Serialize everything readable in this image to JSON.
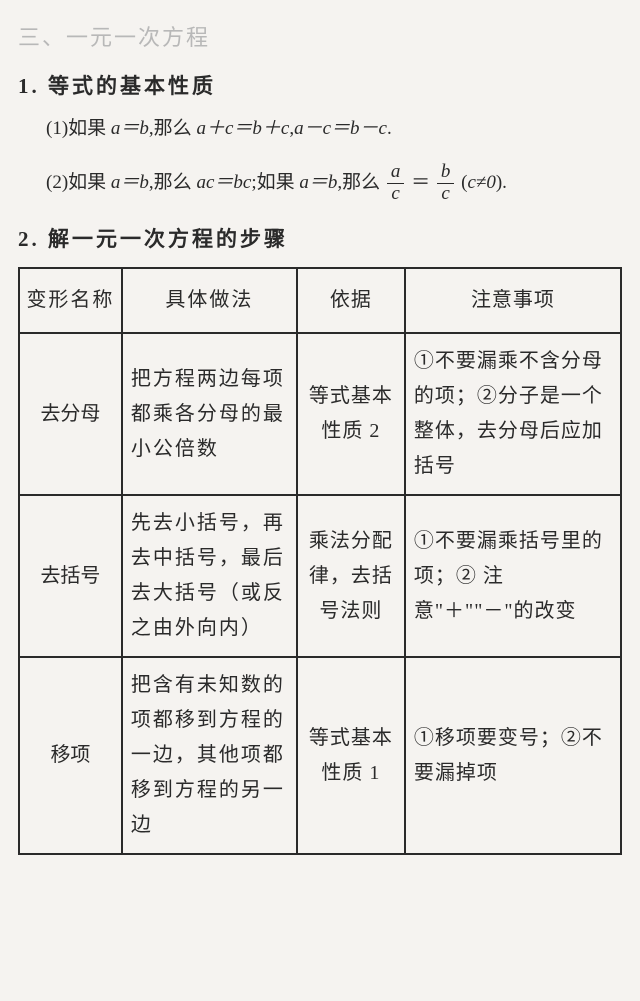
{
  "chapter": "三、一元一次方程",
  "section1": {
    "title": "1. 等式的基本性质",
    "prop1_prefix": "(1)如果 ",
    "prop1_eq1": "a＝b",
    "prop1_mid1": ",那么 ",
    "prop1_eq2": "a＋c＝b＋c",
    "prop1_comma": ",",
    "prop1_eq3": "a－c＝b－c",
    "prop1_period": ".",
    "prop2_prefix": "(2)如果 ",
    "prop2_eq1": "a＝b",
    "prop2_mid1": ",那么 ",
    "prop2_eq2": "ac＝bc",
    "prop2_mid2": ";如果 ",
    "prop2_eq3": "a＝b",
    "prop2_mid3": ",那么 ",
    "frac1_num": "a",
    "frac1_den": "c",
    "prop2_eq": " ＝ ",
    "frac2_num": "b",
    "frac2_den": "c",
    "prop2_paren1": " (",
    "prop2_cne": "c≠0",
    "prop2_paren2": ")."
  },
  "section2": {
    "title": "2. 解一元一次方程的步骤",
    "headers": {
      "name": "变形名称",
      "method": "具体做法",
      "basis": "依据",
      "notes": "注意事项"
    },
    "rows": [
      {
        "name": "去分母",
        "method": "把方程两边每项都乘各分母的最小公倍数",
        "basis": "等式基本性质 2",
        "notes": "①不要漏乘不含分母的项；②分子是一个整体，去分母后应加括号"
      },
      {
        "name": "去括号",
        "method": "先去小括号，再去中括号，最后去大括号（或反之由外向内）",
        "basis": "乘法分配律，去括号法则",
        "notes": "①不要漏乘括号里的项；② 注意\"＋\"\"－\"的改变"
      },
      {
        "name": "移项",
        "method": "把含有未知数的项都移到方程的一边，其他项都移到方程的另一边",
        "basis": "等式基本性质 1",
        "notes": "①移项要变号；②不要漏掉项"
      }
    ]
  }
}
